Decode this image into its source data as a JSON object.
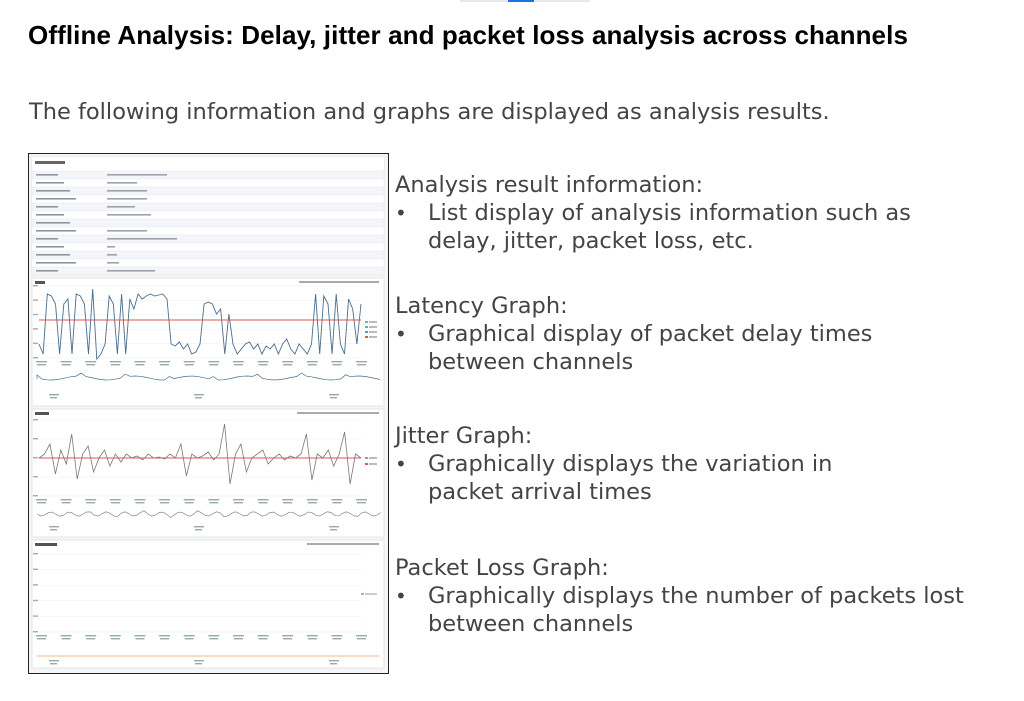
{
  "slide": {
    "title": "Offline Analysis: Delay, jitter and packet loss analysis across channels",
    "intro": "The following information and graphs are displayed as analysis results."
  },
  "sections": [
    {
      "heading": "Analysis result information:",
      "lines": [
        "List display of analysis information such as",
        "delay, jitter, packet loss, etc."
      ]
    },
    {
      "heading": "Latency Graph:",
      "lines": [
        "Graphical display of packet delay times",
        "between channels"
      ]
    },
    {
      "heading": "Jitter Graph:",
      "lines": [
        "Graphically displays the variation in",
        "packet arrival times"
      ]
    },
    {
      "heading": "Packet Loss Graph:",
      "lines": [
        "Graphically displays the number of packets lost",
        "between channels"
      ]
    }
  ],
  "bullet_glyph": "•",
  "colors": {
    "accent_line": "#e05252",
    "series_line": "#4a6d8c",
    "thumbnail_border": "#222222"
  }
}
